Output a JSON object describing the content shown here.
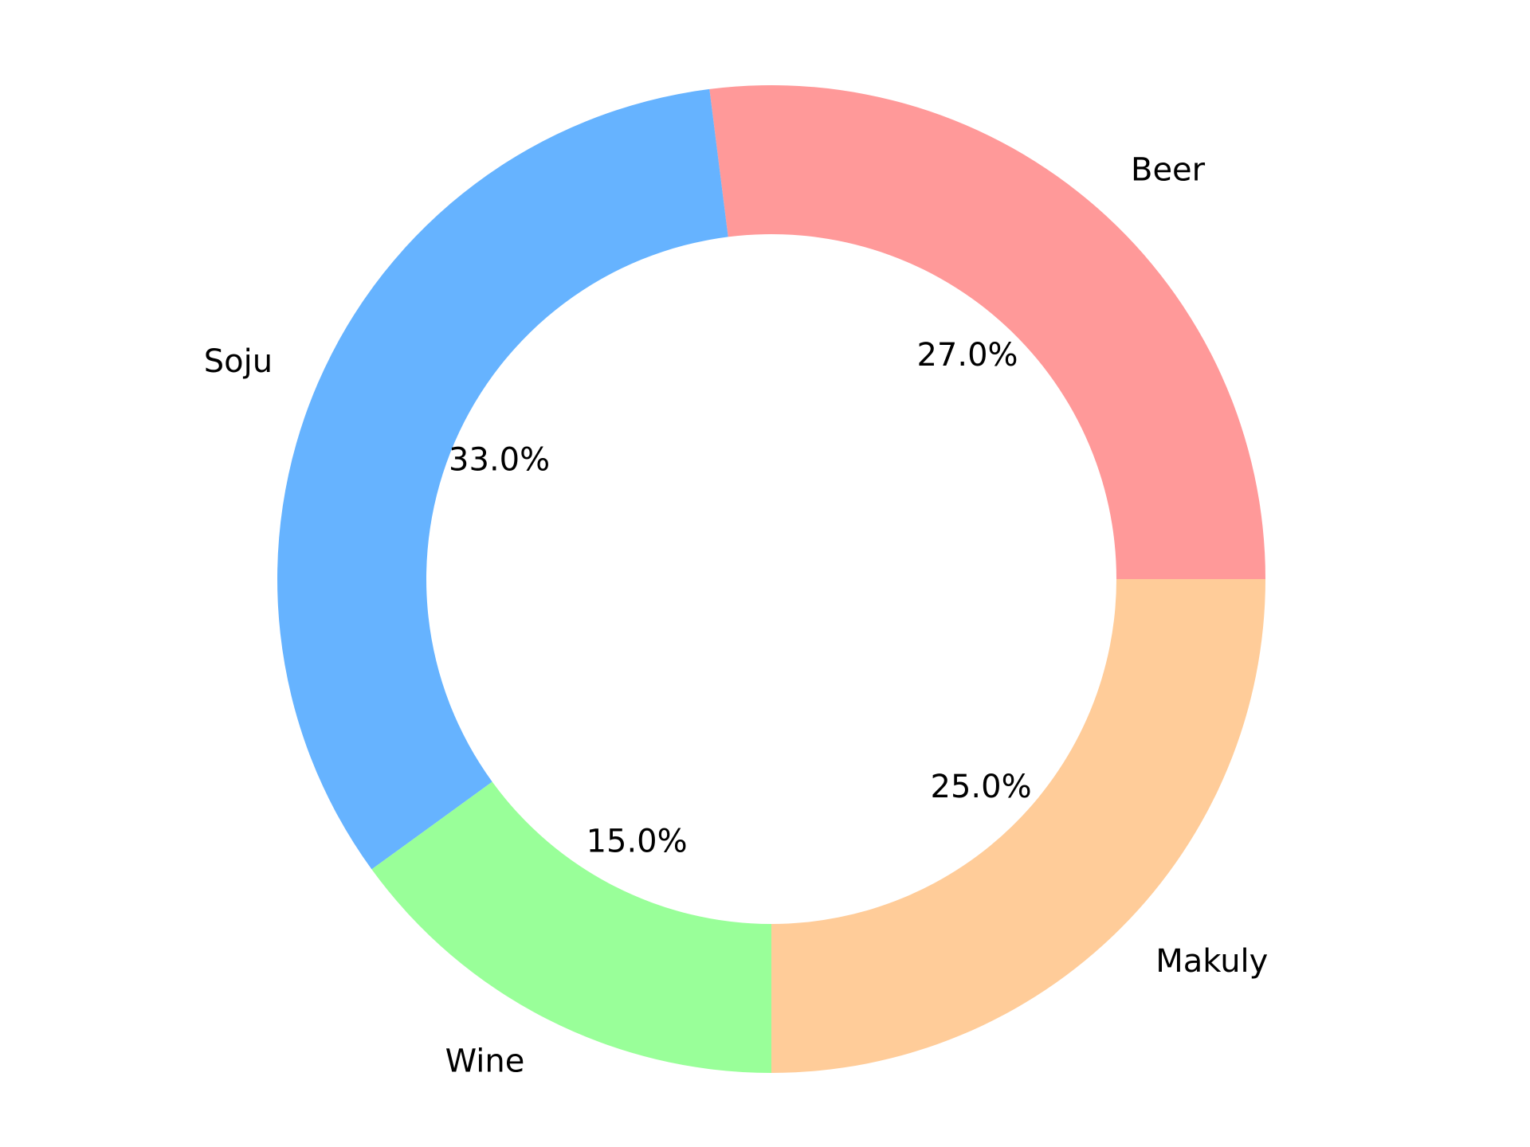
{
  "chart_data": {
    "type": "pie",
    "variant": "donut",
    "title": "",
    "start_angle_deg": 0,
    "direction": "counterclockwise",
    "slices": [
      {
        "label": "Beer",
        "value": 27.0,
        "pct_label": "27.0%",
        "color": "#ff9999"
      },
      {
        "label": "Soju",
        "value": 33.0,
        "pct_label": "33.0%",
        "color": "#66b3ff"
      },
      {
        "label": "Wine",
        "value": 15.0,
        "pct_label": "15.0%",
        "color": "#99ff99"
      },
      {
        "label": "Makuly",
        "value": 25.0,
        "pct_label": "25.0%",
        "color": "#ffcc99"
      }
    ],
    "legend": "none"
  }
}
